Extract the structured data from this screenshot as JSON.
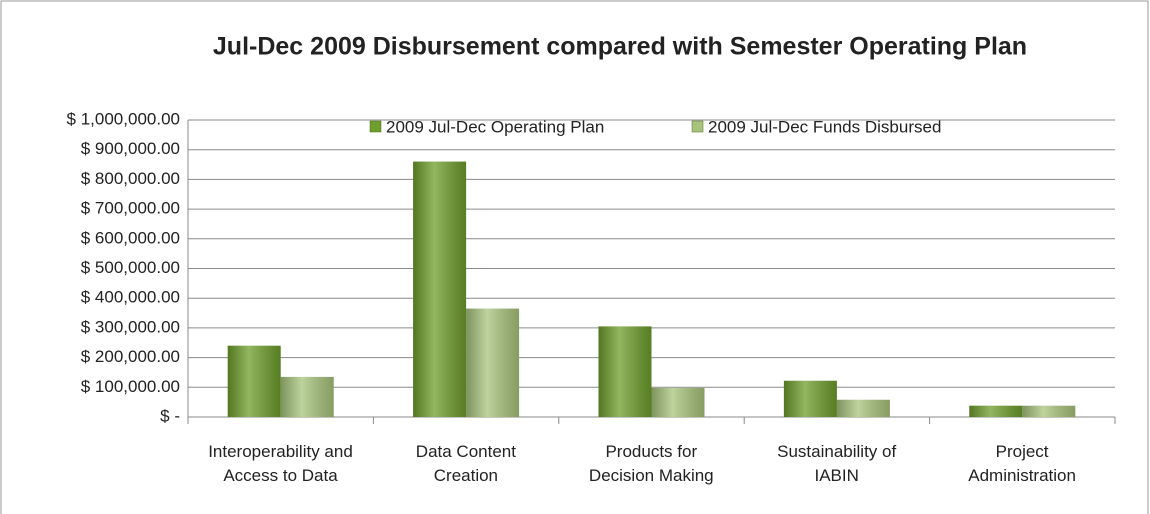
{
  "chart_data": {
    "type": "bar",
    "title": "Jul-Dec 2009 Disbursement compared with Semester Operating Plan",
    "categories": [
      "Interoperability and\nAccess to Data",
      "Data Content\nCreation",
      "Products for\nDecision Making",
      "Sustainability of\nIABIN",
      "Project\nAdministration"
    ],
    "series": [
      {
        "name": "2009 Jul-Dec Operating Plan",
        "color": "#6e9e2c",
        "values": [
          240000,
          860000,
          305000,
          122000,
          38000
        ]
      },
      {
        "name": "2009 Jul-Dec  Funds Disbursed",
        "color": "#a8c47c",
        "values": [
          135000,
          365000,
          98000,
          58000,
          38000
        ]
      }
    ],
    "ylim": [
      0,
      1000000
    ],
    "yticks": [
      {
        "value": 0,
        "label": "$ -"
      },
      {
        "value": 100000,
        "label": "$ 100,000.00"
      },
      {
        "value": 200000,
        "label": "$ 200,000.00"
      },
      {
        "value": 300000,
        "label": "$ 300,000.00"
      },
      {
        "value": 400000,
        "label": "$ 400,000.00"
      },
      {
        "value": 500000,
        "label": "$ 500,000.00"
      },
      {
        "value": 600000,
        "label": "$ 600,000.00"
      },
      {
        "value": 700000,
        "label": "$ 700,000.00"
      },
      {
        "value": 800000,
        "label": "$ 800,000.00"
      },
      {
        "value": 900000,
        "label": "$ 900,000.00"
      },
      {
        "value": 1000000,
        "label": "$ 1,000,000.00"
      }
    ],
    "grid": true,
    "legend": "top"
  }
}
